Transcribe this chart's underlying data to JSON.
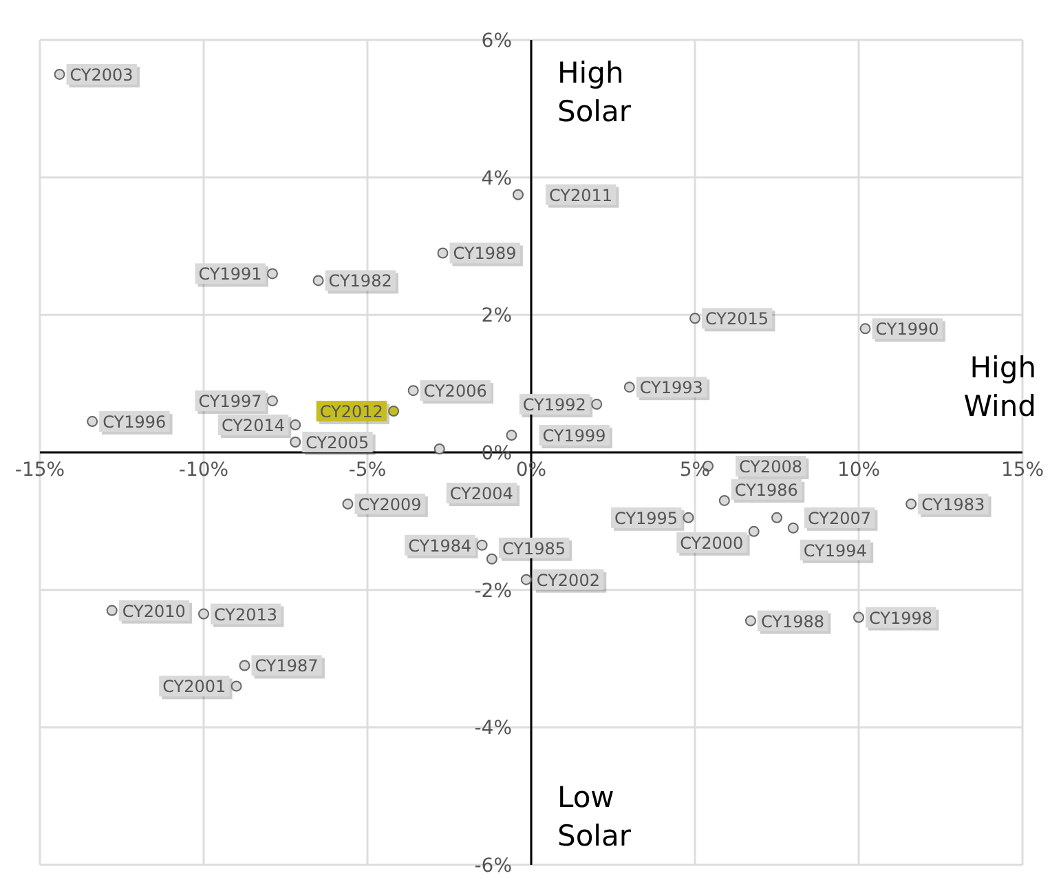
{
  "chart_data": {
    "type": "scatter",
    "x": [
      -14.4,
      -7.9,
      -6.5,
      -2.7,
      -0.4,
      5.0,
      10.2,
      3.0,
      2.0,
      -0.6,
      -3.6,
      -4.2,
      -7.9,
      -7.2,
      -7.2,
      -13.4,
      -2.8,
      -5.6,
      -1.5,
      -1.2,
      -0.15,
      -12.8,
      -10.0,
      -8.75,
      -9.0,
      5.4,
      5.9,
      4.8,
      7.5,
      6.8,
      8.0,
      11.6,
      6.7,
      10.0
    ],
    "series": [
      {
        "values": [
          5.5,
          2.6,
          2.5,
          2.9,
          3.75,
          1.95,
          1.8,
          0.95,
          0.7,
          0.25,
          0.9,
          0.6,
          0.75,
          0.4,
          0.15,
          0.45,
          0.05,
          -0.75,
          -1.35,
          -1.55,
          -1.85,
          -2.3,
          -2.35,
          -3.1,
          -3.4,
          -0.2,
          -0.7,
          -0.95,
          -0.95,
          -1.15,
          -1.1,
          -0.75,
          -2.45,
          -2.4
        ],
        "value_labels": [
          "CY2003",
          "CY1991",
          "CY1982",
          "CY1989",
          "CY2011",
          "CY2015",
          "CY1990",
          "CY1993",
          "CY1992",
          "CY1999",
          "CY2006",
          "CY2012",
          "CY1997",
          "CY2014",
          "CY2005",
          "CY1996",
          "CY2004",
          "CY2009",
          "CY1984",
          "CY1985",
          "CY2002",
          "CY2010",
          "CY2013",
          "CY1987",
          "CY2001",
          "CY2008",
          "CY1986",
          "CY1995",
          "CY2007",
          "CY2000",
          "CY1994",
          "CY1983",
          "CY1988",
          "CY1998"
        ],
        "colors": [
          "#d9d9d9",
          "#d9d9d9",
          "#d9d9d9",
          "#d9d9d9",
          "#d9d9d9",
          "#d9d9d9",
          "#d9d9d9",
          "#d9d9d9",
          "#d9d9d9",
          "#d9d9d9",
          "#d9d9d9",
          "#c8bd1e",
          "#d9d9d9",
          "#d9d9d9",
          "#d9d9d9",
          "#d9d9d9",
          "#d9d9d9",
          "#d9d9d9",
          "#d9d9d9",
          "#d9d9d9",
          "#d9d9d9",
          "#d9d9d9",
          "#d9d9d9",
          "#d9d9d9",
          "#d9d9d9",
          "#d9d9d9",
          "#d9d9d9",
          "#d9d9d9",
          "#d9d9d9",
          "#d9d9d9",
          "#d9d9d9",
          "#d9d9d9",
          "#d9d9d9",
          "#d9d9d9"
        ]
      }
    ],
    "xlim": [
      -15,
      15
    ],
    "xticks": [
      {
        "value": -15,
        "label": "-15%"
      },
      {
        "value": -10,
        "label": "-10%"
      },
      {
        "value": -5,
        "label": "-5%"
      },
      {
        "value": 0,
        "label": "0%"
      },
      {
        "value": 5,
        "label": "5%"
      },
      {
        "value": 10,
        "label": "10%"
      },
      {
        "value": 15,
        "label": "15%"
      }
    ],
    "ylim": [
      -6,
      6
    ],
    "yticks": [
      {
        "value": -6,
        "label": "-6%"
      },
      {
        "value": -4,
        "label": "-4%"
      },
      {
        "value": -2,
        "label": "-2%"
      },
      {
        "value": 0,
        "label": "0%"
      },
      {
        "value": 2,
        "label": "2%"
      },
      {
        "value": 4,
        "label": "4%"
      },
      {
        "value": 6,
        "label": "6%"
      }
    ],
    "grid": true,
    "marker": "circle",
    "annotations": [
      "High Solar",
      "High Wind",
      "Low Solar"
    ]
  }
}
